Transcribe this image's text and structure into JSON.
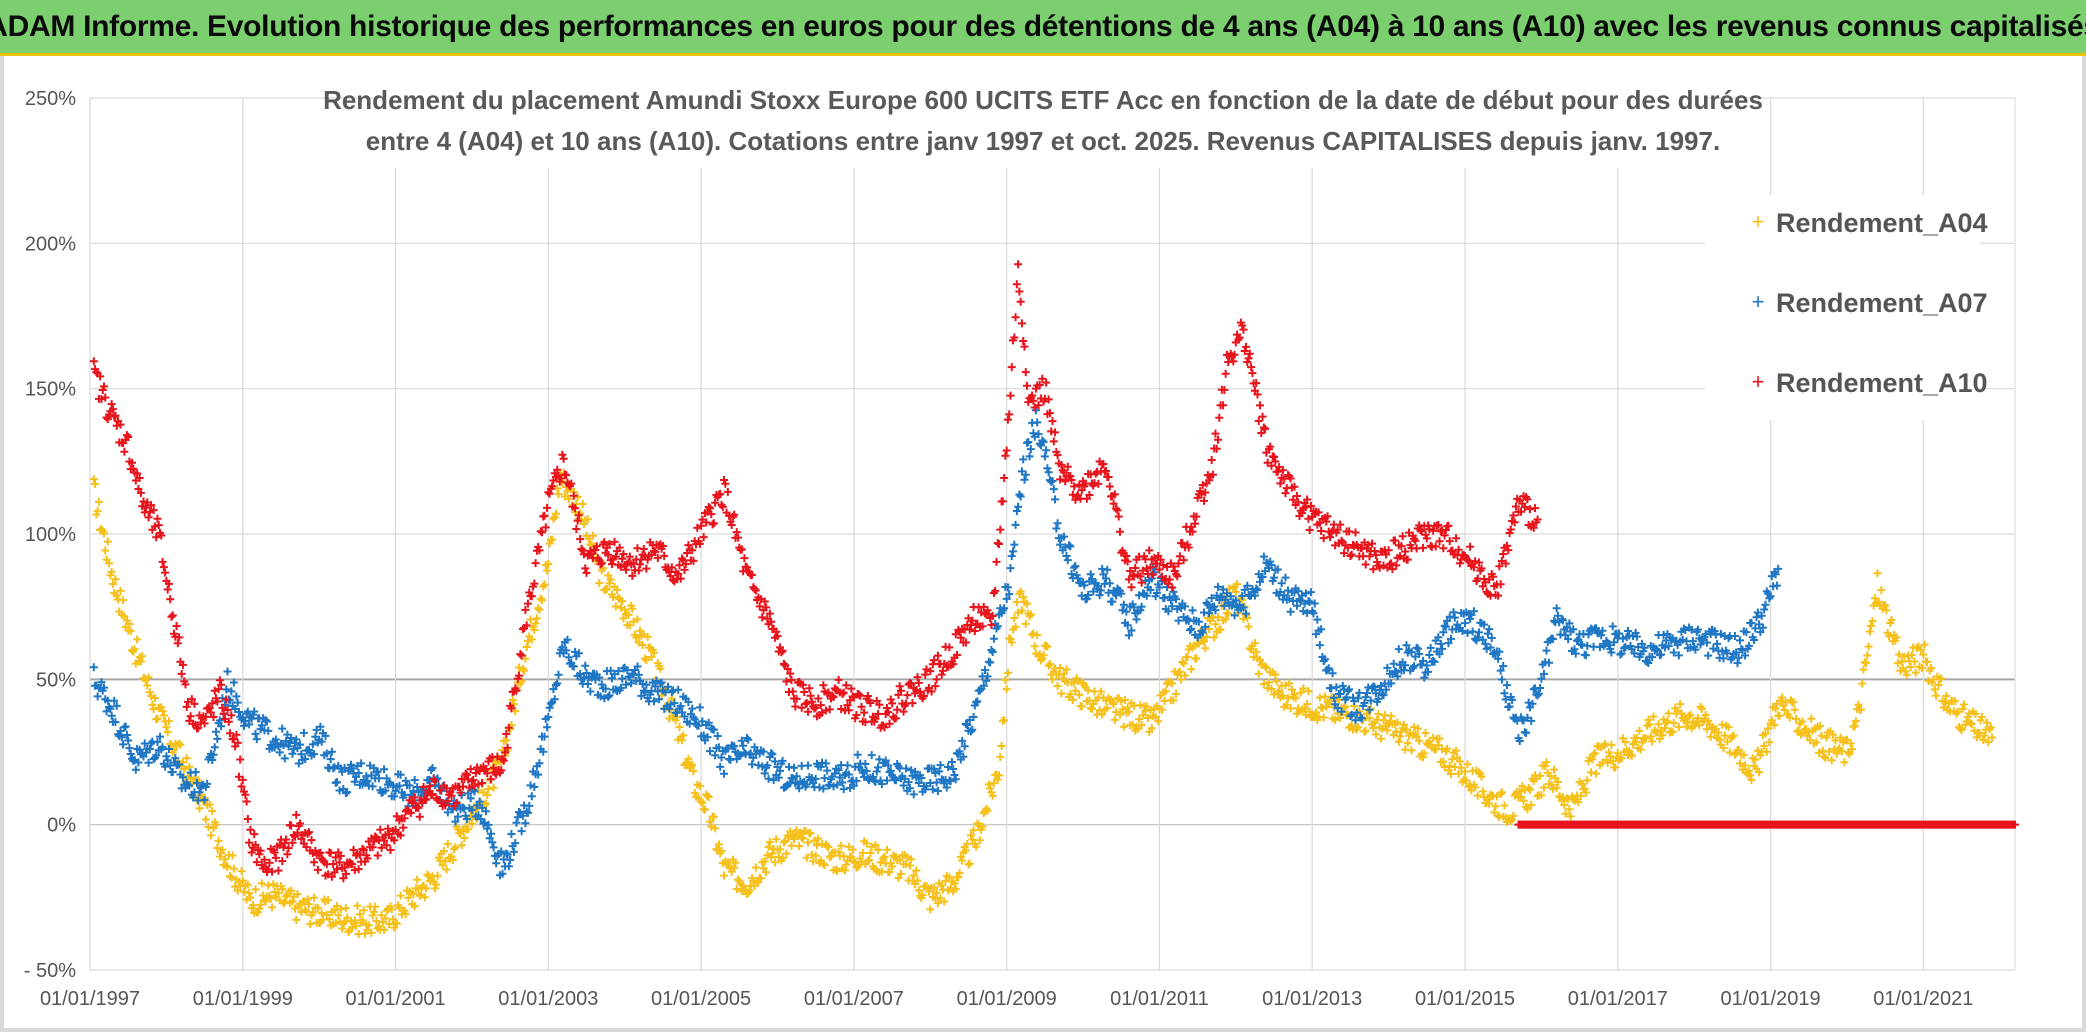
{
  "banner": {
    "title": "ADAM Informe. Evolution historique des performances en euros pour des détentions de 4 ans (A04) à 10 ans (A10) avec les revenus connus capitalisés",
    "background_color": "#7ccf6f",
    "accent_color": "#f2c200"
  },
  "chart_data": {
    "type": "scatter",
    "title": [
      "Rendement du placement Amundi Stoxx Europe 600 UCITS ETF Acc en fonction de la date de début pour des durées",
      "entre 4 (A04) et 10 ans (A10). Cotations entre janv 1997 et oct. 2025. Revenus CAPITALISES depuis janv. 1997."
    ],
    "xlabel": "",
    "ylabel": "",
    "xlim": [
      1997.0,
      2022.2
    ],
    "ylim": [
      -50,
      250
    ],
    "y_ticks": [
      {
        "value": 250,
        "label": "250%"
      },
      {
        "value": 200,
        "label": "200%"
      },
      {
        "value": 150,
        "label": "150%"
      },
      {
        "value": 100,
        "label": "100%"
      },
      {
        "value": 50,
        "label": "50%"
      },
      {
        "value": 0,
        "label": "0%"
      },
      {
        "value": -50,
        "label": "- 50%"
      }
    ],
    "x_ticks": [
      {
        "value": 1997,
        "label": "01/01/1997"
      },
      {
        "value": 1999,
        "label": "01/01/1999"
      },
      {
        "value": 2001,
        "label": "01/01/2001"
      },
      {
        "value": 2003,
        "label": "01/01/2003"
      },
      {
        "value": 2005,
        "label": "01/01/2005"
      },
      {
        "value": 2007,
        "label": "01/01/2007"
      },
      {
        "value": 2009,
        "label": "01/01/2009"
      },
      {
        "value": 2011,
        "label": "01/01/2011"
      },
      {
        "value": 2013,
        "label": "01/01/2013"
      },
      {
        "value": 2015,
        "label": "01/01/2015"
      },
      {
        "value": 2017,
        "label": "01/01/2017"
      },
      {
        "value": 2019,
        "label": "01/01/2019"
      },
      {
        "value": 2021,
        "label": "01/01/2021"
      }
    ],
    "grid": true,
    "legend_position": "right",
    "marker": "+",
    "series": [
      {
        "name": "Rendement_A04",
        "color": "#f5c01a",
        "x": [
          1997.05,
          1997.3,
          1997.6,
          1997.9,
          1998.2,
          1998.5,
          1998.8,
          1999.1,
          1999.4,
          1999.7,
          2000.0,
          2000.3,
          2000.6,
          2000.9,
          2001.2,
          2001.5,
          2001.8,
          2002.1,
          2002.4,
          2002.7,
          2003.0,
          2003.15,
          2003.4,
          2003.7,
          2004.0,
          2004.3,
          2004.6,
          2004.9,
          2005.1,
          2005.3,
          2005.6,
          2005.9,
          2006.2,
          2006.5,
          2006.8,
          2007.1,
          2007.4,
          2007.7,
          2008.0,
          2008.3,
          2008.6,
          2008.9,
          2009.05,
          2009.2,
          2009.4,
          2009.7,
          2010.0,
          2010.3,
          2010.6,
          2010.9,
          2011.2,
          2011.5,
          2011.8,
          2012.0,
          2012.3,
          2012.6,
          2012.9,
          2013.2,
          2013.5,
          2013.8,
          2014.1,
          2014.4,
          2014.7,
          2015.0,
          2015.3,
          2015.6,
          2015.9,
          2016.1,
          2016.4,
          2016.7,
          2017.0,
          2017.3,
          2017.6,
          2017.9,
          2018.2,
          2018.5,
          2018.8,
          2019.1,
          2019.4,
          2019.7,
          2020.0,
          2020.15,
          2020.4,
          2020.7,
          2021.0,
          2021.3,
          2021.6,
          2021.9
        ],
        "y": [
          115,
          85,
          60,
          38,
          22,
          6,
          -12,
          -26,
          -24,
          -28,
          -30,
          -32,
          -33,
          -33,
          -25,
          -18,
          -5,
          8,
          22,
          60,
          90,
          120,
          110,
          85,
          75,
          60,
          40,
          15,
          5,
          -15,
          -20,
          -10,
          -5,
          -8,
          -12,
          -10,
          -12,
          -15,
          -25,
          -20,
          -5,
          20,
          65,
          78,
          62,
          50,
          45,
          40,
          38,
          35,
          48,
          62,
          72,
          80,
          55,
          45,
          42,
          40,
          38,
          35,
          32,
          28,
          25,
          18,
          10,
          5,
          12,
          18,
          5,
          22,
          25,
          30,
          35,
          38,
          35,
          28,
          18,
          42,
          35,
          28,
          25,
          38,
          82,
          55,
          58,
          42,
          35,
          30
        ]
      },
      {
        "name": "Rendement_A07",
        "color": "#1f77c4",
        "x": [
          1997.05,
          1997.3,
          1997.6,
          1997.9,
          1998.2,
          1998.5,
          1998.8,
          1999.1,
          1999.4,
          1999.7,
          2000.0,
          2000.3,
          2000.6,
          2000.9,
          2001.2,
          2001.5,
          2001.8,
          2002.1,
          2002.4,
          2002.7,
          2003.0,
          2003.2,
          2003.5,
          2003.8,
          2004.1,
          2004.4,
          2004.7,
          2005.0,
          2005.3,
          2005.6,
          2005.9,
          2006.2,
          2006.5,
          2006.8,
          2007.1,
          2007.4,
          2007.7,
          2008.0,
          2008.3,
          2008.6,
          2008.9,
          2009.05,
          2009.2,
          2009.4,
          2009.7,
          2010.0,
          2010.3,
          2010.6,
          2010.9,
          2011.2,
          2011.5,
          2011.8,
          2012.1,
          2012.4,
          2012.7,
          2013.0,
          2013.3,
          2013.6,
          2013.9,
          2014.2,
          2014.5,
          2014.8,
          2015.1,
          2015.4,
          2015.7,
          2015.95,
          2016.2,
          2016.5,
          2016.8,
          2017.1,
          2017.4,
          2017.7,
          2018.0,
          2018.3,
          2018.6,
          2018.9,
          2019.1
        ],
        "y": [
          50,
          40,
          22,
          28,
          15,
          12,
          48,
          35,
          30,
          25,
          30,
          15,
          18,
          15,
          10,
          15,
          5,
          8,
          -15,
          5,
          35,
          62,
          50,
          48,
          52,
          45,
          42,
          35,
          22,
          25,
          20,
          15,
          18,
          15,
          20,
          18,
          15,
          15,
          18,
          40,
          70,
          85,
          120,
          140,
          100,
          80,
          85,
          70,
          85,
          75,
          68,
          80,
          75,
          90,
          78,
          75,
          45,
          40,
          48,
          58,
          55,
          68,
          70,
          60,
          30,
          45,
          70,
          62,
          65,
          62,
          60,
          62,
          65,
          62,
          60,
          72,
          88
        ]
      },
      {
        "name": "Rendement_A10",
        "color": "#e8141c",
        "x": [
          1997.05,
          1997.3,
          1997.5,
          1997.7,
          1997.9,
          1998.1,
          1998.3,
          1998.5,
          1998.7,
          1998.9,
          1999.1,
          1999.3,
          1999.5,
          1999.7,
          2000.0,
          2000.3,
          2000.6,
          2000.9,
          2001.2,
          2001.5,
          2001.8,
          2002.1,
          2002.4,
          2002.7,
          2003.0,
          2003.2,
          2003.5,
          2003.8,
          2004.1,
          2004.4,
          2004.7,
          2005.0,
          2005.3,
          2005.6,
          2005.9,
          2006.2,
          2006.5,
          2006.8,
          2007.1,
          2007.4,
          2007.7,
          2008.0,
          2008.3,
          2008.6,
          2008.8,
          2009.0,
          2009.15,
          2009.3,
          2009.5,
          2009.7,
          2010.0,
          2010.3,
          2010.6,
          2010.9,
          2011.2,
          2011.5,
          2011.7,
          2011.9,
          2012.1,
          2012.4,
          2012.7,
          2013.0,
          2013.3,
          2013.6,
          2013.9,
          2014.2,
          2014.5,
          2014.8,
          2015.1,
          2015.4,
          2015.7,
          2015.95
        ],
        "y": [
          155,
          140,
          130,
          110,
          100,
          70,
          40,
          35,
          45,
          30,
          -5,
          -15,
          -10,
          0,
          -12,
          -15,
          -10,
          -5,
          5,
          12,
          10,
          18,
          20,
          70,
          110,
          125,
          90,
          95,
          90,
          95,
          85,
          100,
          115,
          85,
          70,
          45,
          42,
          45,
          40,
          38,
          45,
          50,
          60,
          72,
          68,
          130,
          190,
          145,
          150,
          120,
          115,
          125,
          85,
          90,
          85,
          110,
          125,
          160,
          170,
          130,
          115,
          105,
          100,
          95,
          90,
          95,
          100,
          98,
          90,
          80,
          110,
          105
        ]
      },
      {
        "name": "Rendement_A10 (0%)",
        "color": "#e8141c",
        "x": [
          2015.7,
          2016.2,
          2016.7,
          2017.2,
          2017.7,
          2018.2,
          2018.7,
          2019.2,
          2019.7,
          2020.2,
          2020.7,
          2021.2,
          2021.7,
          2022.2
        ],
        "y": [
          0,
          0,
          0,
          0,
          0,
          0,
          0,
          0,
          0,
          0,
          0,
          0,
          0,
          0
        ]
      }
    ]
  },
  "legend": [
    {
      "label": "Rendement_A04",
      "color": "#f5c01a"
    },
    {
      "label": "Rendement_A07",
      "color": "#1f77c4"
    },
    {
      "label": "Rendement_A10",
      "color": "#e8141c"
    }
  ]
}
